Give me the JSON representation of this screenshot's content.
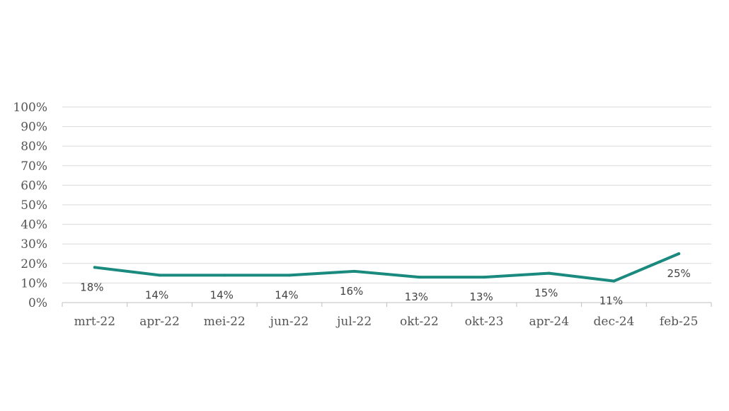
{
  "chart_data": {
    "type": "line",
    "title": "",
    "xlabel": "",
    "ylabel": "",
    "categories": [
      "mrt-22",
      "apr-22",
      "mei-22",
      "jun-22",
      "jul-22",
      "okt-22",
      "okt-23",
      "apr-24",
      "dec-24",
      "feb-25"
    ],
    "series": [
      {
        "values": [
          18,
          14,
          14,
          14,
          16,
          13,
          13,
          15,
          11,
          25
        ],
        "labels": [
          "18%",
          "14%",
          "14%",
          "14%",
          "16%",
          "13%",
          "13%",
          "15%",
          "11%",
          "25%"
        ],
        "color": "#1a8a7e"
      }
    ],
    "ylim": [
      0,
      100
    ],
    "yticks": [
      "0%",
      "10%",
      "20%",
      "30%",
      "40%",
      "50%",
      "60%",
      "70%",
      "80%",
      "90%",
      "100%"
    ],
    "grid": true,
    "legend": "none",
    "gridColor": "#d9d9d9"
  }
}
